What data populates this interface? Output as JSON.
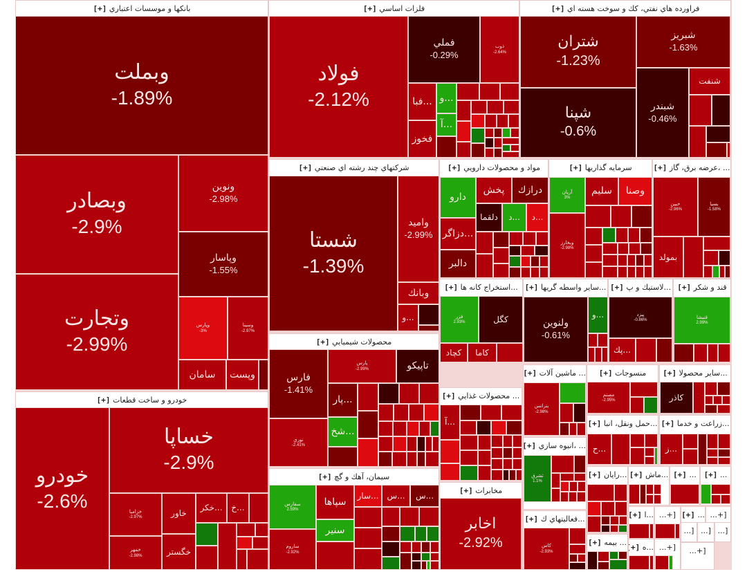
{
  "chart_data": {
    "type": "treemap",
    "title": "",
    "colors": {
      "deep_loss": "#3d0000",
      "dark_loss": "#7a0000",
      "loss": "#b0000a",
      "bright_loss": "#dd0a10",
      "gain": "#22a60e",
      "dark_gain": "#127a0a"
    },
    "sectors": [
      {
        "name": "بانكها و موسسات اعتباري",
        "expand": "[+]",
        "stocks": [
          {
            "symbol": "وبملت",
            "change": "-1.89%"
          },
          {
            "symbol": "وبصادر",
            "change": "-2.9%"
          },
          {
            "symbol": "وتجارت",
            "change": "-2.99%"
          },
          {
            "symbol": "ونوين",
            "change": "-2.98%"
          },
          {
            "symbol": "وپاسار",
            "change": "-1.55%"
          },
          {
            "symbol": "وپارس",
            "change": "-3%"
          },
          {
            "symbol": "وسينا",
            "change": "-2.97%"
          },
          {
            "symbol": "سامان",
            "change": ""
          },
          {
            "symbol": "وپست",
            "change": ""
          }
        ]
      },
      {
        "name": "فلزات اساسي",
        "expand": "[+]",
        "stocks": [
          {
            "symbol": "فولاد",
            "change": "-2.12%"
          },
          {
            "symbol": "فملي",
            "change": "-0.29%"
          },
          {
            "symbol": "ذوب",
            "change": "-2.64%"
          },
          {
            "symbol": "...فبا",
            "change": ""
          },
          {
            "symbol": "...و",
            "change": ""
          },
          {
            "symbol": "...آ",
            "change": ""
          },
          {
            "symbol": "فخوز",
            "change": ""
          }
        ]
      },
      {
        "name": "فراورده هاي نفتي، كك و سوخت هسته اي",
        "expand": "[+]",
        "stocks": [
          {
            "symbol": "شتران",
            "change": "-1.23%"
          },
          {
            "symbol": "شپنا",
            "change": "-0.6%"
          },
          {
            "symbol": "شبريز",
            "change": "-1.63%"
          },
          {
            "symbol": "شبندر",
            "change": "-0.46%"
          },
          {
            "symbol": "شنفت",
            "change": ""
          }
        ]
      },
      {
        "name": "خودرو و ساخت قطعات",
        "expand": "[+]",
        "stocks": [
          {
            "symbol": "خودرو",
            "change": "-2.6%"
          },
          {
            "symbol": "خساپا",
            "change": "-2.9%"
          },
          {
            "symbol": "خزاميا",
            "change": "-2.97%"
          },
          {
            "symbol": "خاور",
            "change": ""
          },
          {
            "symbol": "...خكر",
            "change": ""
          },
          {
            "symbol": "...خ",
            "change": ""
          },
          {
            "symbol": "خمهر",
            "change": "-2.98%"
          },
          {
            "symbol": "خگستر",
            "change": ""
          }
        ]
      },
      {
        "name": "شركتهاي چند رشته اي صنعتي",
        "expand": "[+]",
        "stocks": [
          {
            "symbol": "شستا",
            "change": "-1.39%"
          },
          {
            "symbol": "واميد",
            "change": "-2.99%"
          },
          {
            "symbol": "وبانك",
            "change": ""
          },
          {
            "symbol": "...و",
            "change": ""
          }
        ]
      },
      {
        "name": "محصولات شيميايي",
        "expand": "[+]",
        "stocks": [
          {
            "symbol": "فارس",
            "change": "-1.41%"
          },
          {
            "symbol": "پارس",
            "change": "-2.99%"
          },
          {
            "symbol": "تاپيكو",
            "change": ""
          },
          {
            "symbol": "...پار",
            "change": ""
          },
          {
            "symbol": "...شخ",
            "change": ""
          },
          {
            "symbol": "نوري",
            "change": "-2.41%"
          }
        ]
      },
      {
        "name": "سيمان، آهك و گچ",
        "expand": "[+]",
        "stocks": [
          {
            "symbol": "سفارس",
            "change": "2.59%"
          },
          {
            "symbol": "سپاها",
            "change": ""
          },
          {
            "symbol": "سنير",
            "change": ""
          },
          {
            "symbol": "...سار",
            "change": ""
          },
          {
            "symbol": "...س",
            "change": ""
          },
          {
            "symbol": "...س",
            "change": ""
          },
          {
            "symbol": "ساروم",
            "change": "-2.92%"
          }
        ]
      },
      {
        "name": "مواد و محصولات دارويي",
        "expand": "[+]",
        "stocks": [
          {
            "symbol": "دارو",
            "change": ""
          },
          {
            "symbol": "پخش",
            "change": ""
          },
          {
            "symbol": "درازك",
            "change": ""
          },
          {
            "symbol": "دلقما",
            "change": ""
          },
          {
            "symbol": "...د",
            "change": ""
          },
          {
            "symbol": "...د",
            "change": ""
          },
          {
            "symbol": "...دزاگر",
            "change": ""
          },
          {
            "symbol": "دالبر",
            "change": ""
          }
        ]
      },
      {
        "name": "سرمايه گذاريها",
        "expand": "[+]",
        "stocks": [
          {
            "symbol": "آريان",
            "change": "3%"
          },
          {
            "symbol": "سليم",
            "change": ""
          },
          {
            "symbol": "وصنا",
            "change": ""
          },
          {
            "symbol": "وبخارز",
            "change": "-2.98%"
          }
        ]
      },
      {
        "name": "... ،عرضه برق، گاز",
        "expand": "[+]",
        "stocks": [
          {
            "symbol": "خبين",
            "change": "-2.96%"
          },
          {
            "symbol": "بسيا",
            "change": "-1.58%"
          },
          {
            "symbol": "بمولد",
            "change": ""
          }
        ]
      },
      {
        "name": "...استخراج كانه ها",
        "expand": "[+]",
        "stocks": [
          {
            "symbol": "فزر",
            "change": "2.93%"
          },
          {
            "symbol": "كگل",
            "change": ""
          },
          {
            "symbol": "كاما",
            "change": ""
          },
          {
            "symbol": "كچاد",
            "change": ""
          }
        ]
      },
      {
        "name": "...ساير واسطه گريها",
        "expand": "[+]",
        "stocks": [
          {
            "symbol": "ولنوين",
            "change": "-0.61%"
          },
          {
            "symbol": "...و",
            "change": ""
          }
        ]
      },
      {
        "name": "...لاستيك و پ",
        "expand": "[+]",
        "stocks": [
          {
            "symbol": "پيزد",
            "change": "-0.86%"
          },
          {
            "symbol": "...پك",
            "change": ""
          }
        ]
      },
      {
        "name": "قند و شكر",
        "expand": "[+]",
        "stocks": [
          {
            "symbol": "قنيشا",
            "change": "2.99%"
          }
        ]
      },
      {
        "name": "... محصولات غذايي",
        "expand": "[+]",
        "stocks": [
          {
            "symbol": "...آ",
            "change": ""
          }
        ]
      },
      {
        "name": "... ماشين آلات",
        "expand": "[+]",
        "stocks": [
          {
            "symbol": "بترانس",
            "change": "-2.98%"
          }
        ]
      },
      {
        "name": "منسوجات",
        "expand": "[+]",
        "stocks": [
          {
            "symbol": "مصنم",
            "change": "-2.95%"
          }
        ]
      },
      {
        "name": "...ساير محصولا",
        "expand": "[+]",
        "stocks": [
          {
            "symbol": "كاذر",
            "change": ""
          }
        ]
      },
      {
        "name": "...حمل ونقل، انبا",
        "expand": "[+]",
        "stocks": [
          {
            "symbol": "...ح",
            "change": ""
          }
        ]
      },
      {
        "name": "...زراعت و خدما",
        "expand": "[+]",
        "stocks": [
          {
            "symbol": "...ز",
            "change": ""
          }
        ]
      },
      {
        "name": "... ،انبوه سازي",
        "expand": "[+]",
        "stocks": [
          {
            "symbol": "ثشرق",
            "change": "1.1%"
          }
        ]
      },
      {
        "name": "مخابرات",
        "expand": "[+]",
        "stocks": [
          {
            "symbol": "اخابر",
            "change": "-2.92%"
          }
        ]
      },
      {
        "name": "...فعاليتهاي ك",
        "expand": "[+]",
        "stocks": [
          {
            "symbol": "كاس",
            "change": "-2.93%"
          }
        ]
      },
      {
        "name": "...رايان",
        "expand": "[+]",
        "stocks": []
      },
      {
        "name": "...ماش",
        "expand": "[+]",
        "stocks": []
      },
      {
        "name": "...",
        "expand": "[+]",
        "stocks": []
      },
      {
        "name": "... بيمه",
        "expand": "[+]",
        "stocks": []
      },
      {
        "name": "...ا",
        "expand": "[+]",
        "stocks": []
      },
      {
        "name": "...ه",
        "expand": "[+]",
        "stocks": []
      }
    ]
  },
  "labels": {
    "plus": "[+]",
    "banks": "بانكها و موسسات اعتباري",
    "metals": "فلزات اساسي",
    "oil": "فراورده هاي نفتي، كك و سوخت هسته اي",
    "auto": "خودرو و ساخت قطعات",
    "multi": "شركتهاي چند رشته اي صنعتي",
    "chem": "محصولات شيميايي",
    "cement": "سيمان، آهك و گچ",
    "pharma": "مواد و محصولات دارويي",
    "invest": "سرمايه گذاريها",
    "power": "... ،عرضه برق، گاز",
    "mining": "...استخراج كانه ها",
    "fin": "...ساير واسطه گريها",
    "rubber": "...لاستيك و پ",
    "sugar": "قند و شكر",
    "food": "... محصولات غذايي",
    "machine": "... ماشين آلات",
    "textile": "منسوجات",
    "othprod": "...ساير محصولا",
    "transport": "...حمل ونقل، انبا",
    "agri": "...زراعت و خدما",
    "construct": "... ،انبوه سازي",
    "telecom": "مخابرات",
    "activities": "...فعاليتهاي ك",
    "rayan": "...رايان",
    "mash": "...ماش",
    "dots": "...",
    "insurance": "... بيمه",
    "a1": "...ا",
    "h1": "...ه",
    "sq": "[...",
    "plusdots": "[+..."
  },
  "t": {
    "vbmellat": [
      "وبملت",
      "-1.89%"
    ],
    "vbsader": [
      "وبصادر",
      "-2.9%"
    ],
    "vtejarat": [
      "وتجارت",
      "-2.99%"
    ],
    "vnovin": [
      "ونوين",
      "-2.98%"
    ],
    "vpasar": [
      "وپاسار",
      "-1.55%"
    ],
    "vpars": [
      "وپارس",
      "-3%"
    ],
    "vsina": [
      "وسينا",
      "-2.97%"
    ],
    "saman": [
      "سامان",
      ""
    ],
    "vpost": [
      "وپست",
      ""
    ],
    "foolad": [
      "فولاد",
      "-2.12%"
    ],
    "fameli": [
      "فملي",
      "-0.29%"
    ],
    "zob": [
      "ذوب",
      "-2.64%"
    ],
    "faba": [
      "...فبا",
      ""
    ],
    "vdots": [
      "...و",
      ""
    ],
    "adots": [
      "...آ",
      ""
    ],
    "fkhooz": [
      "فخوز",
      ""
    ],
    "shetran": [
      "شتران",
      "-1.23%"
    ],
    "shepna": [
      "شپنا",
      "-0.6%"
    ],
    "shabriz": [
      "شبريز",
      "-1.63%"
    ],
    "shbandar": [
      "شبندر",
      "-0.46%"
    ],
    "shenaft": [
      "شنفت",
      ""
    ],
    "khodro": [
      "خودرو",
      "-2.6%"
    ],
    "khsapa": [
      "خساپا",
      "-2.9%"
    ],
    "khzamia": [
      "خزاميا",
      "-2.97%"
    ],
    "khavar": [
      "خاور",
      ""
    ],
    "khkar": [
      "...خكر",
      ""
    ],
    "khdots": [
      "...خ",
      ""
    ],
    "khmehr": [
      "خمهر",
      "-2.98%"
    ],
    "khgostar": [
      "خگستر",
      ""
    ],
    "shasta": [
      "شستا",
      "-1.39%"
    ],
    "vomid": [
      "واميد",
      "-2.99%"
    ],
    "vbank": [
      "وبانك",
      ""
    ],
    "fars": [
      "فارس",
      "-1.41%"
    ],
    "pars": [
      "پارس",
      "-2.99%"
    ],
    "tapico": [
      "تاپيكو",
      ""
    ],
    "par": [
      "...پار",
      ""
    ],
    "shkh": [
      "...شخ",
      ""
    ],
    "noori": [
      "نوري",
      "-2.41%"
    ],
    "sfars": [
      "سفارس",
      "2.59%"
    ],
    "sepaha": [
      "سپاها",
      ""
    ],
    "sanir": [
      "سنير",
      ""
    ],
    "sar": [
      "...سار",
      ""
    ],
    "sdots": [
      "...س",
      ""
    ],
    "saroom": [
      "ساروم",
      "-2.92%"
    ],
    "daroo": [
      "دارو",
      ""
    ],
    "pakhsh": [
      "پخش",
      ""
    ],
    "darazak": [
      "درازك",
      ""
    ],
    "dalgma": [
      "دلقما",
      ""
    ],
    "ddots": [
      "...د",
      ""
    ],
    "dzagros": [
      "...دزاگر",
      ""
    ],
    "dalbar": [
      "دالبر",
      ""
    ],
    "arian": [
      "آريان",
      "3%"
    ],
    "salim": [
      "سليم",
      ""
    ],
    "vsana": [
      "وصنا",
      ""
    ],
    "vbkharz": [
      "وبخارز",
      "-2.98%"
    ],
    "khbin": [
      "خبين",
      "-2.96%"
    ],
    "bsia": [
      "بسيا",
      "-1.58%"
    ],
    "bmoled": [
      "بمولد",
      ""
    ],
    "fazar": [
      "فزر",
      "2.93%"
    ],
    "kgol": [
      "كگل",
      ""
    ],
    "kama": [
      "كاما",
      ""
    ],
    "kchad": [
      "كچاد",
      ""
    ],
    "valnovin": [
      "ولنوين",
      "-0.61%"
    ],
    "pyazd": [
      "پيزد",
      "-0.86%"
    ],
    "pak": [
      "...پك",
      ""
    ],
    "ghnisha": [
      "قنيشا",
      "2.99%"
    ],
    "btrans": [
      "بترانس",
      "-2.98%"
    ],
    "masnam": [
      "مصنم",
      "-2.95%"
    ],
    "kazar": [
      "كاذر",
      ""
    ],
    "hdots": [
      "...ح",
      ""
    ],
    "zdots": [
      "...ز",
      ""
    ],
    "sshargh": [
      "ثشرق",
      "1.1%"
    ],
    "akhaber": [
      "اخابر",
      "-2.92%"
    ],
    "kas": [
      "كاس",
      "-2.93%"
    ]
  }
}
